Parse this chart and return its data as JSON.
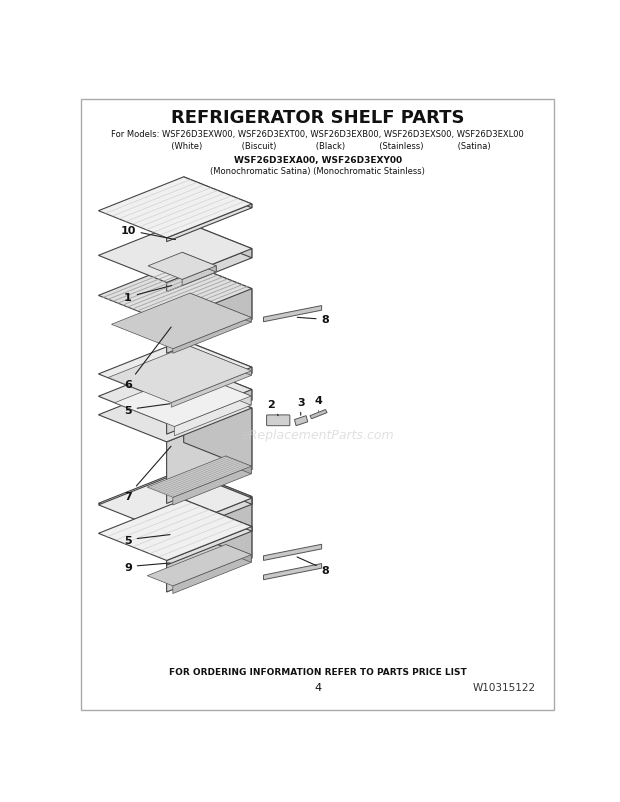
{
  "title": "REFRIGERATOR SHELF PARTS",
  "subtitle1": "For Models: WSF26D3EXW00, WSF26D3EXT00, WSF26D3EXB00, WSF26D3EXS00, WSF26D3EXL00",
  "subtitle2": "          (White)               (Biscuit)               (Black)             (Stainless)             (Satina)",
  "subtitle3": "WSF26D3EXA00, WSF26D3EXY00",
  "subtitle4": "(Monochromatic Satina) (Monochromatic Stainless)",
  "footer1": "FOR ORDERING INFORMATION REFER TO PARTS PRICE LIST",
  "footer_page": "4",
  "footer_part": "W10315122",
  "watermark": "eReplacementParts.com",
  "bg_color": "#ffffff",
  "text_color": "#1a1a1a"
}
